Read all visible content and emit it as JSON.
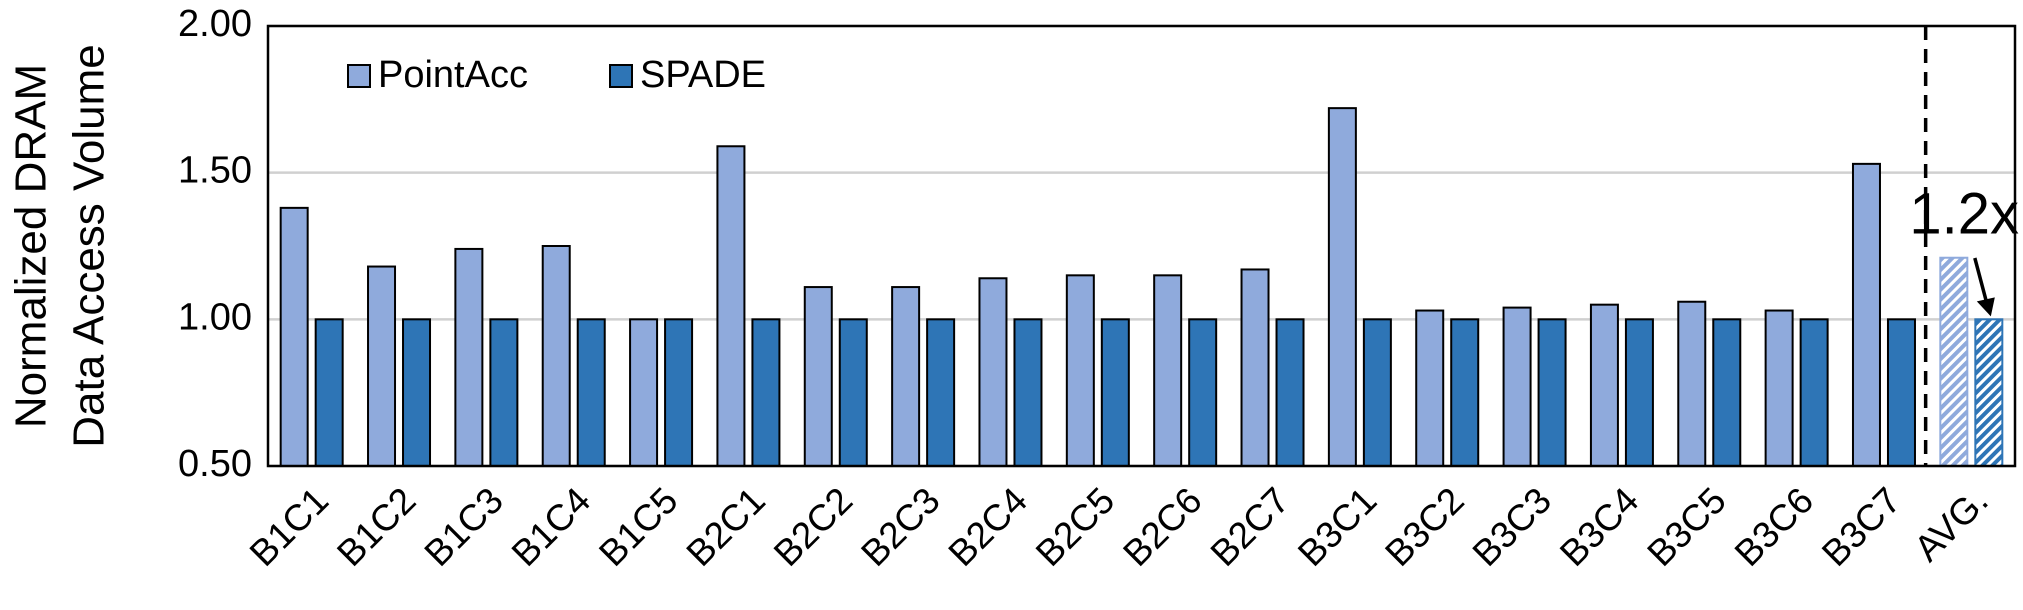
{
  "chart_data": {
    "type": "bar",
    "y_label": [
      "Normalized DRAM",
      "Data Access Volume"
    ],
    "categories": [
      "B1C1",
      "B1C2",
      "B1C3",
      "B1C4",
      "B1C5",
      "B2C1",
      "B2C2",
      "B2C3",
      "B2C4",
      "B2C5",
      "B2C6",
      "B2C7",
      "B3C1",
      "B3C2",
      "B3C3",
      "B3C4",
      "B3C5",
      "B3C6",
      "B3C7",
      "AVG."
    ],
    "series": [
      {
        "name": "PointAcc",
        "color": "#8faadc",
        "values": [
          1.38,
          1.18,
          1.24,
          1.25,
          1.0,
          1.59,
          1.11,
          1.11,
          1.14,
          1.15,
          1.15,
          1.17,
          1.72,
          1.03,
          1.04,
          1.05,
          1.06,
          1.03,
          1.53,
          1.21
        ]
      },
      {
        "name": "SPADE",
        "color": "#2e75b6",
        "values": [
          1.0,
          1.0,
          1.0,
          1.0,
          1.0,
          1.0,
          1.0,
          1.0,
          1.0,
          1.0,
          1.0,
          1.0,
          1.0,
          1.0,
          1.0,
          1.0,
          1.0,
          1.0,
          1.0,
          1.0
        ]
      }
    ],
    "ylim": [
      0.5,
      2.0
    ],
    "yticks": [
      {
        "value": 0.5,
        "label": "0.50"
      },
      {
        "value": 1.0,
        "label": "1.00"
      },
      {
        "value": 1.5,
        "label": "1.50"
      },
      {
        "value": 2.0,
        "label": "2.00"
      }
    ],
    "grid": true,
    "legend": "top-left",
    "hatch_last_category": true,
    "separator_before_last": true,
    "annotation": "1.2x"
  }
}
